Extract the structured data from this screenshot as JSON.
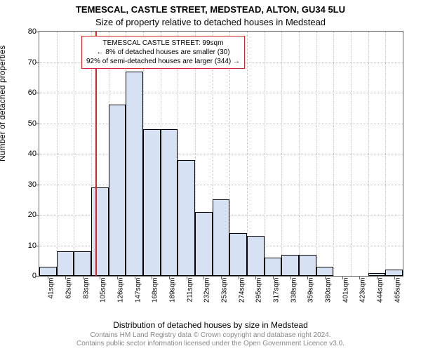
{
  "titles": {
    "line1": "TEMESCAL, CASTLE STREET, MEDSTEAD, ALTON, GU34 5LU",
    "line2": "Size of property relative to detached houses in Medstead"
  },
  "ylabel": "Number of detached properties",
  "xlabel": "Distribution of detached houses by size in Medstead",
  "footer": {
    "line1": "Contains HM Land Registry data © Crown copyright and database right 2024.",
    "line2": "Contains public sector information licensed under the Open Government Licence v3.0."
  },
  "chart": {
    "type": "histogram",
    "background_color": "#ffffff",
    "grid_color": "#bfbfbf",
    "border_color": "#666666",
    "bar_fill": "#d6e1f3",
    "bar_stroke": "#000000",
    "marker_color": "#d62728",
    "annotation_border": "#d62728",
    "annotation_bg": "#ffffff",
    "font_color": "#000000",
    "footer_color": "#888888",
    "ylim": [
      0,
      80
    ],
    "ytick_step": 10,
    "xlim_sqm": [
      30,
      476
    ],
    "bars": [
      {
        "label": "41sqm",
        "value": 3
      },
      {
        "label": "62sqm",
        "value": 8
      },
      {
        "label": "83sqm",
        "value": 8
      },
      {
        "label": "105sqm",
        "value": 29
      },
      {
        "label": "126sqm",
        "value": 56
      },
      {
        "label": "147sqm",
        "value": 67
      },
      {
        "label": "168sqm",
        "value": 48
      },
      {
        "label": "189sqm",
        "value": 48
      },
      {
        "label": "211sqm",
        "value": 38
      },
      {
        "label": "232sqm",
        "value": 21
      },
      {
        "label": "253sqm",
        "value": 25
      },
      {
        "label": "274sqm",
        "value": 14
      },
      {
        "label": "295sqm",
        "value": 13
      },
      {
        "label": "317sqm",
        "value": 6
      },
      {
        "label": "338sqm",
        "value": 7
      },
      {
        "label": "359sqm",
        "value": 7
      },
      {
        "label": "380sqm",
        "value": 3
      },
      {
        "label": "401sqm",
        "value": 0
      },
      {
        "label": "423sqm",
        "value": 0
      },
      {
        "label": "444sqm",
        "value": 1
      },
      {
        "label": "465sqm",
        "value": 2
      }
    ],
    "marker_sqm": 99,
    "annotation": {
      "line1": "TEMESCAL CASTLE STREET: 99sqm",
      "line2": "← 8% of detached houses are smaller (30)",
      "line3": "92% of semi-detached houses are larger (344) →"
    }
  }
}
